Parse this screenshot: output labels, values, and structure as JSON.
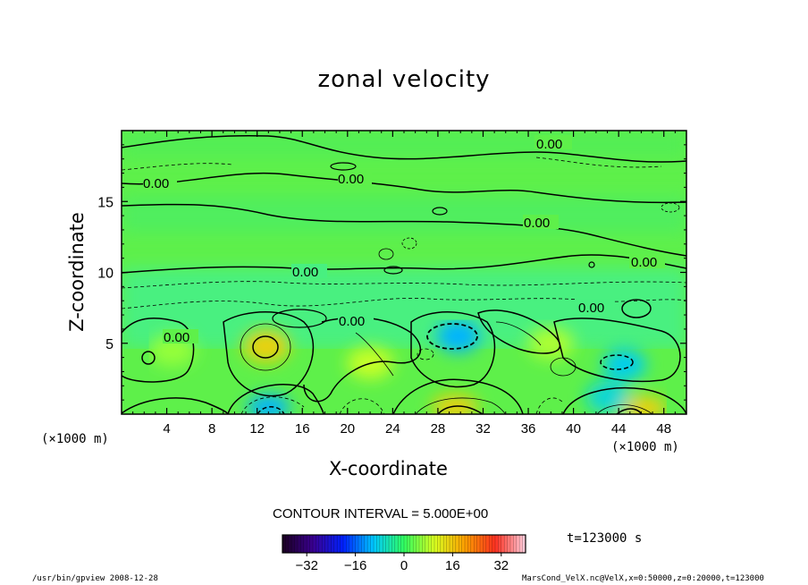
{
  "chart_data": {
    "type": "contour",
    "title": "zonal velocity",
    "xlabel": "X-coordinate",
    "ylabel": "Z-coordinate",
    "x_unit_label": "(×1000 m)",
    "xlim": [
      0,
      50
    ],
    "ylim": [
      0,
      20
    ],
    "x_ticks": [
      4,
      8,
      12,
      16,
      20,
      24,
      28,
      32,
      36,
      40,
      44,
      48
    ],
    "y_ticks": [
      5,
      10,
      15
    ],
    "contour_interval_text": "CONTOUR INTERVAL = 5.000E+00",
    "colorbar": {
      "range": [
        -40,
        40
      ],
      "ticks": [
        -32,
        -16,
        0,
        16,
        32
      ],
      "colormap": "rainbow"
    },
    "contour_labels": [
      "0.00",
      "0.00",
      "0.00",
      "0.00",
      "0.00",
      "0.00",
      "0.00",
      "0.00",
      "0.00"
    ],
    "features": [
      {
        "x": 12.8,
        "z": 4.8,
        "value": 20,
        "kind": "max"
      },
      {
        "x": 29.8,
        "z": 5.5,
        "value": -15,
        "kind": "min"
      },
      {
        "x": 29.5,
        "z": 0.5,
        "value": 20,
        "kind": "max"
      },
      {
        "x": 46.2,
        "z": 0.4,
        "value": 20,
        "kind": "max"
      },
      {
        "x": 44.5,
        "z": 3.5,
        "value": -12,
        "kind": "min"
      },
      {
        "x": 13.0,
        "z": 0.5,
        "value": -15,
        "kind": "min"
      },
      {
        "x": 22.0,
        "z": 3.6,
        "value": 12,
        "kind": "max"
      },
      {
        "x": 38.0,
        "z": 5.0,
        "value": 10,
        "kind": "max"
      },
      {
        "x": 4.5,
        "z": 4.5,
        "value": 8,
        "kind": "max"
      },
      {
        "x": 43.0,
        "z": 1.2,
        "value": -10,
        "kind": "min"
      }
    ]
  },
  "time_text": "t=123000 s",
  "footer": {
    "left": "/usr/bin/gpview  2008-12-28",
    "right": "MarsCond_VelX.nc@VelX,x=0:50000,z=0:20000,t=123000"
  }
}
